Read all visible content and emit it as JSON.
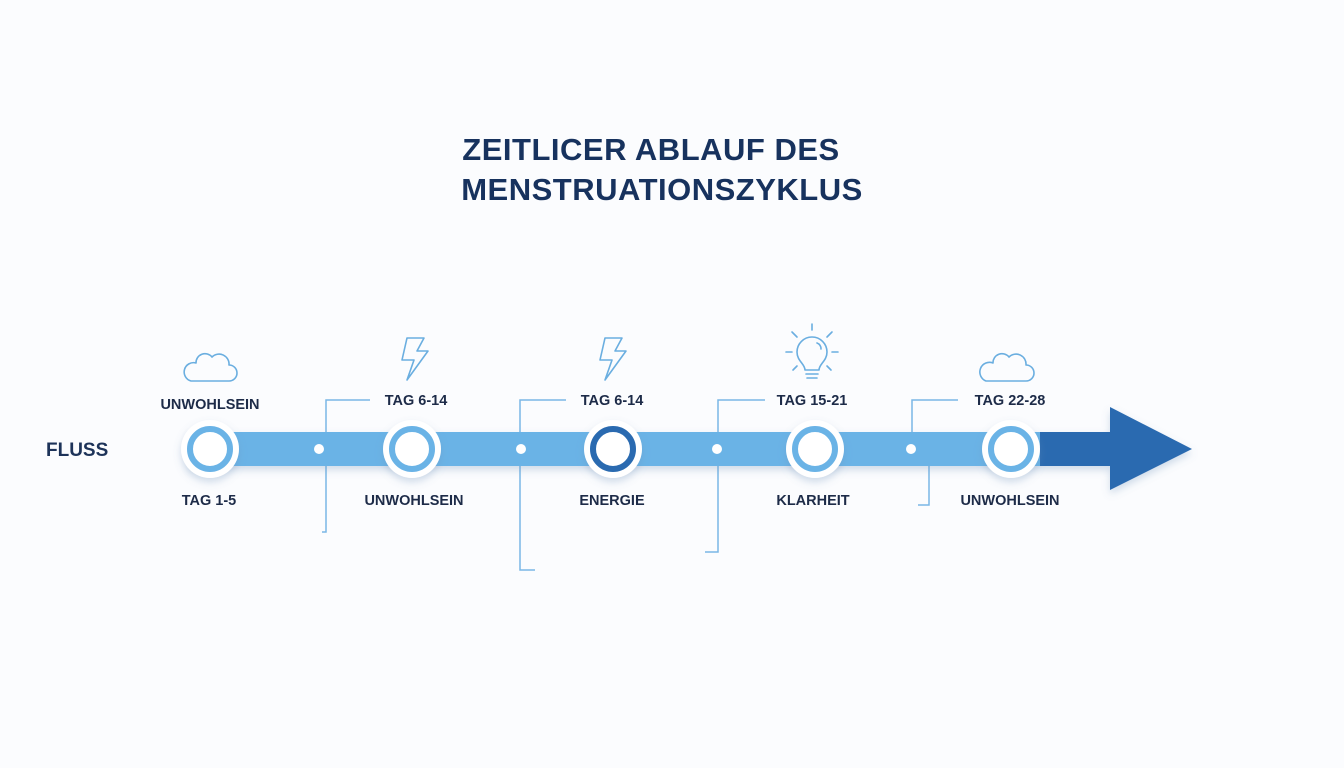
{
  "title": {
    "line1": "ZEITLICER ABLAUF DES",
    "line2": "MENSTRUATIONSZYKLUS"
  },
  "axis_label": "FLUSS",
  "colors": {
    "bar": "#6bb3e6",
    "arrow": "#2a6bb0",
    "title": "#17325e",
    "ring": "#6bb3e6",
    "ring_active": "#2a6bb0",
    "connector": "#7ab7e6"
  },
  "stages": [
    {
      "icon": "cloud-icon",
      "top": "UNWOHLSEIN",
      "bottom": "TAG 1-5",
      "active": false
    },
    {
      "icon": "lightning-icon",
      "top": "TAG 6-14",
      "bottom": "UNWOHLSEIN",
      "active": false
    },
    {
      "icon": "lightning-icon",
      "top": "TAG 6-14",
      "bottom": "ENERGIE",
      "active": true
    },
    {
      "icon": "lightbulb-icon",
      "top": "TAG 15-21",
      "bottom": "KLARHEIT",
      "active": false
    },
    {
      "icon": "cloud-icon",
      "top": "TAG 22-28",
      "bottom": "UNWOHLSEIN",
      "active": false
    }
  ]
}
